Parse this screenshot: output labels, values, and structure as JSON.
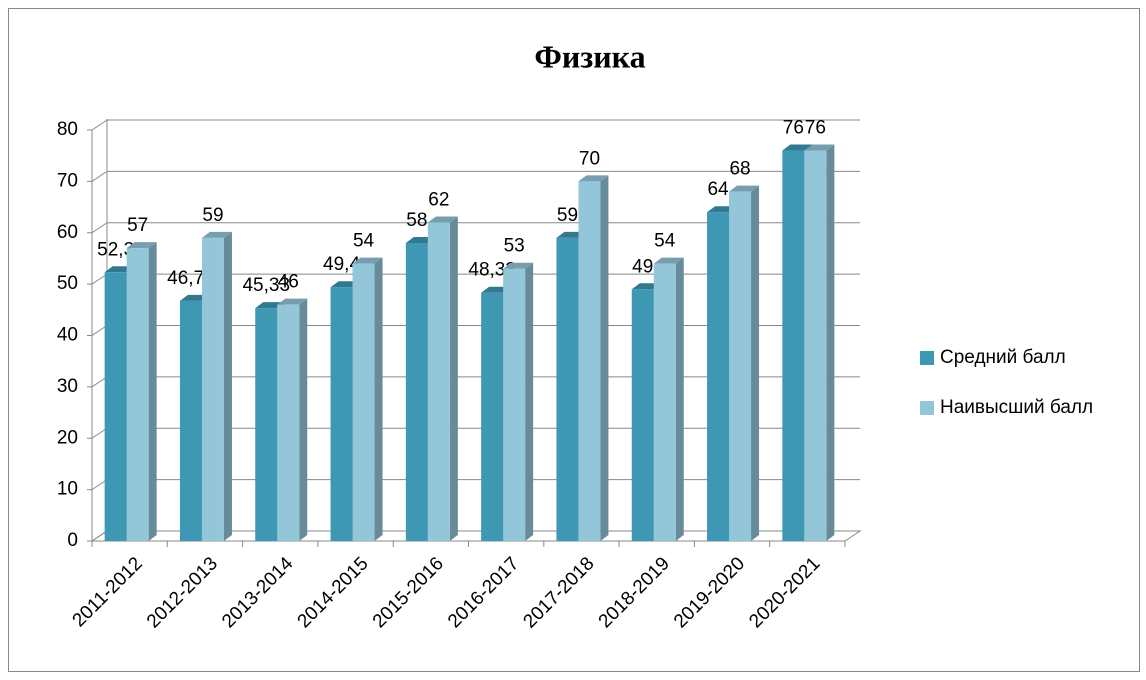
{
  "chart_data": {
    "type": "bar3d",
    "title": "Физика",
    "categories": [
      "2011-2012",
      "2012-2013",
      "2013-2014",
      "2014-2015",
      "2015-2016",
      "2016-2017",
      "2017-2018",
      "2018-2019",
      "2019-2020",
      "2020-2021"
    ],
    "series": [
      {
        "name": "Средний балл",
        "color": "#3e97b3",
        "values": [
          52.3,
          46.75,
          45.33,
          49.4,
          58,
          48.33,
          59,
          49,
          64,
          76
        ],
        "value_labels": [
          "52,3",
          "46,75",
          "45,33",
          "49,4",
          "58",
          "48,33",
          "59",
          "49",
          "64",
          "76"
        ]
      },
      {
        "name": "Наивысший балл",
        "color": "#93c6d9",
        "values": [
          57,
          59,
          46,
          54,
          62,
          53,
          70,
          54,
          68,
          76
        ]
      }
    ],
    "ylim": [
      0,
      80
    ],
    "yticks": [
      0,
      10,
      20,
      30,
      40,
      50,
      60,
      70,
      80
    ],
    "grid": true,
    "legend": "right"
  }
}
